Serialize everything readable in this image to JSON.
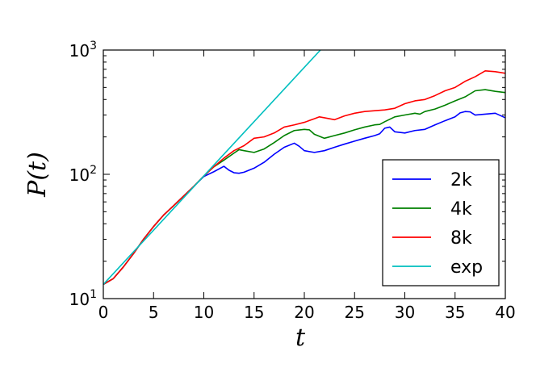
{
  "chart_data": {
    "type": "line",
    "xlabel": "t",
    "ylabel": "P(t)",
    "xlim": [
      0,
      40
    ],
    "ylim": [
      10,
      1000
    ],
    "yscale": "log",
    "x_ticks": [
      0,
      5,
      10,
      15,
      20,
      25,
      30,
      35,
      40
    ],
    "x_tick_labels": [
      "0",
      "5",
      "10",
      "15",
      "20",
      "25",
      "30",
      "35",
      "40"
    ],
    "y_ticks": [
      10,
      100,
      1000
    ],
    "y_tick_labels": [
      {
        "base": "10",
        "exp": "1"
      },
      {
        "base": "10",
        "exp": "2"
      },
      {
        "base": "10",
        "exp": "3"
      }
    ],
    "grid": false,
    "legend_position": "lower-right",
    "series": [
      {
        "name": "2k",
        "color": "#0000ff",
        "points": [
          [
            0,
            13
          ],
          [
            1,
            14.5
          ],
          [
            2,
            18
          ],
          [
            3,
            23
          ],
          [
            4,
            30
          ],
          [
            5,
            38
          ],
          [
            6,
            47
          ],
          [
            7,
            56
          ],
          [
            8,
            67
          ],
          [
            9,
            80
          ],
          [
            10,
            96
          ],
          [
            11,
            105
          ],
          [
            12,
            116
          ],
          [
            12.5,
            108
          ],
          [
            13,
            103
          ],
          [
            13.5,
            102
          ],
          [
            14,
            104
          ],
          [
            15,
            112
          ],
          [
            16,
            125
          ],
          [
            17,
            145
          ],
          [
            18,
            165
          ],
          [
            19,
            178
          ],
          [
            19.5,
            168
          ],
          [
            20,
            155
          ],
          [
            21,
            150
          ],
          [
            22,
            155
          ],
          [
            23,
            165
          ],
          [
            24,
            175
          ],
          [
            25,
            185
          ],
          [
            26,
            195
          ],
          [
            27,
            205
          ],
          [
            27.5,
            212
          ],
          [
            28,
            235
          ],
          [
            28.5,
            240
          ],
          [
            29,
            220
          ],
          [
            30,
            215
          ],
          [
            31,
            225
          ],
          [
            32,
            230
          ],
          [
            33,
            250
          ],
          [
            34,
            270
          ],
          [
            35,
            290
          ],
          [
            35.5,
            312
          ],
          [
            36,
            320
          ],
          [
            36.5,
            318
          ],
          [
            37,
            300
          ],
          [
            38,
            305
          ],
          [
            39,
            310
          ],
          [
            40,
            285
          ]
        ]
      },
      {
        "name": "4k",
        "color": "#008000",
        "points": [
          [
            0,
            13
          ],
          [
            1,
            14.5
          ],
          [
            2,
            18
          ],
          [
            3,
            23
          ],
          [
            4,
            30
          ],
          [
            5,
            38
          ],
          [
            6,
            47
          ],
          [
            7,
            56
          ],
          [
            8,
            67
          ],
          [
            9,
            80
          ],
          [
            10,
            97
          ],
          [
            11,
            115
          ],
          [
            12,
            130
          ],
          [
            13,
            148
          ],
          [
            13.5,
            158
          ],
          [
            14,
            155
          ],
          [
            15,
            150
          ],
          [
            16,
            160
          ],
          [
            17,
            180
          ],
          [
            18,
            205
          ],
          [
            19,
            225
          ],
          [
            20,
            230
          ],
          [
            20.5,
            228
          ],
          [
            21,
            210
          ],
          [
            22,
            195
          ],
          [
            23,
            205
          ],
          [
            24,
            215
          ],
          [
            25,
            228
          ],
          [
            26,
            240
          ],
          [
            27,
            250
          ],
          [
            27.5,
            252
          ],
          [
            28,
            265
          ],
          [
            29,
            290
          ],
          [
            30,
            300
          ],
          [
            31,
            310
          ],
          [
            31.5,
            305
          ],
          [
            32,
            320
          ],
          [
            33,
            335
          ],
          [
            34,
            360
          ],
          [
            35,
            390
          ],
          [
            36,
            420
          ],
          [
            37,
            470
          ],
          [
            38,
            480
          ],
          [
            39,
            465
          ],
          [
            40,
            455
          ]
        ]
      },
      {
        "name": "8k",
        "color": "#ff0000",
        "points": [
          [
            0,
            13
          ],
          [
            1,
            14.5
          ],
          [
            2,
            18
          ],
          [
            3,
            23
          ],
          [
            4,
            30
          ],
          [
            5,
            38
          ],
          [
            6,
            47
          ],
          [
            7,
            56
          ],
          [
            8,
            67
          ],
          [
            9,
            80
          ],
          [
            10,
            97
          ],
          [
            11,
            115
          ],
          [
            12,
            135
          ],
          [
            13,
            155
          ],
          [
            14,
            170
          ],
          [
            15,
            195
          ],
          [
            16,
            200
          ],
          [
            17,
            215
          ],
          [
            18,
            240
          ],
          [
            19,
            250
          ],
          [
            20,
            262
          ],
          [
            21,
            280
          ],
          [
            21.5,
            290
          ],
          [
            22,
            285
          ],
          [
            23,
            275
          ],
          [
            24,
            295
          ],
          [
            25,
            310
          ],
          [
            26,
            320
          ],
          [
            27,
            325
          ],
          [
            28,
            330
          ],
          [
            29,
            340
          ],
          [
            30,
            370
          ],
          [
            31,
            390
          ],
          [
            32,
            400
          ],
          [
            33,
            430
          ],
          [
            34,
            470
          ],
          [
            35,
            500
          ],
          [
            36,
            560
          ],
          [
            37,
            610
          ],
          [
            38,
            680
          ],
          [
            39,
            670
          ],
          [
            40,
            650
          ]
        ]
      },
      {
        "name": "exp",
        "color": "#00bfbf",
        "points": [
          [
            0,
            13
          ],
          [
            21.6,
            1000
          ]
        ]
      }
    ]
  }
}
